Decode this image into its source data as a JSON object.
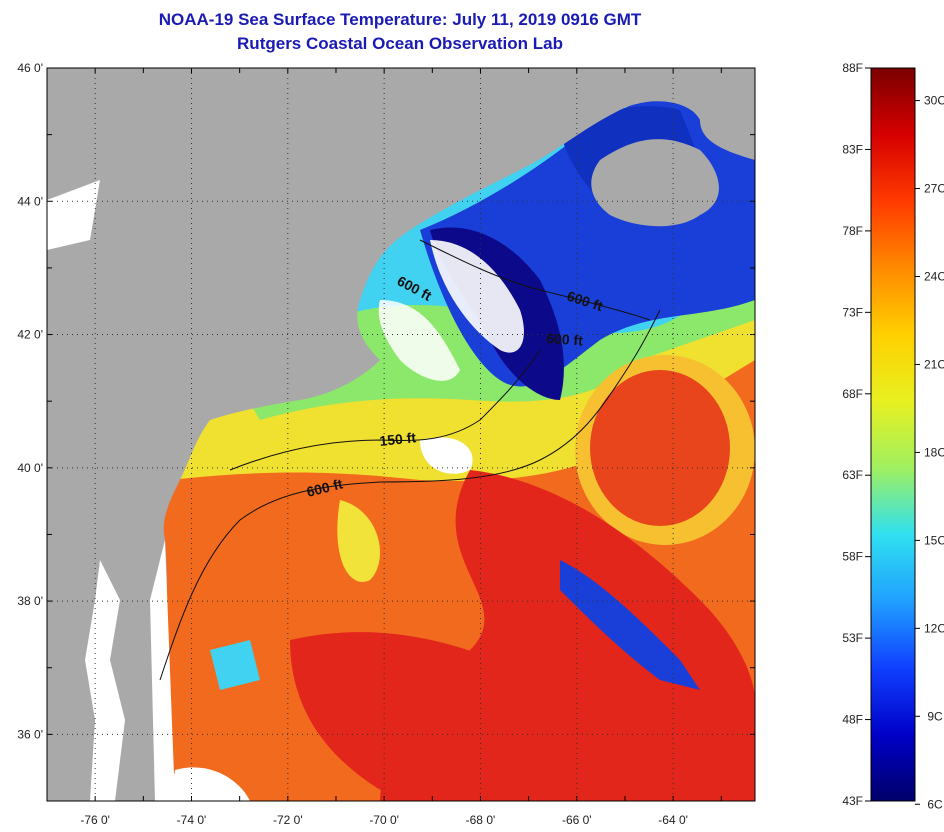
{
  "title": {
    "line1": "NOAA-19 Sea Surface Temperature:  July 11, 2019 0916 GMT",
    "line2": "Rutgers Coastal Ocean Observation Lab"
  },
  "map": {
    "lat_labels": [
      "46 0'",
      "44 0'",
      "42 0'",
      "40 0'",
      "38 0'",
      "36 0'"
    ],
    "lat_values": [
      46,
      44,
      42,
      40,
      38,
      36
    ],
    "lon_labels": [
      "-76 0'",
      "-74 0'",
      "-72 0'",
      "-70 0'",
      "-68 0'",
      "-66 0'",
      "-64 0'"
    ],
    "lon_values": [
      -76,
      -74,
      -72,
      -70,
      -68,
      -66,
      -64
    ],
    "lat_range": [
      35,
      46
    ],
    "lon_range": [
      -77,
      -62.3
    ],
    "contour_labels": [
      "600 ft",
      "600 ft",
      "600 ft",
      "150 ft",
      "600 ft"
    ],
    "colors": {
      "land": "#a9a9a9",
      "cloud": "#ffffff",
      "warm": "#f26a1e",
      "hot": "#e3261c",
      "yellow": "#f2e33a",
      "cyan": "#3fd0f0",
      "blue": "#1a3fd8",
      "navy": "#0c0a8a"
    }
  },
  "colorbar": {
    "f_labels": [
      "88F",
      "83F",
      "78F",
      "73F",
      "68F",
      "63F",
      "58F",
      "53F",
      "48F",
      "43F"
    ],
    "f_values": [
      88,
      83,
      78,
      73,
      68,
      63,
      58,
      53,
      48,
      43
    ],
    "c_labels": [
      "30C",
      "27C",
      "24C",
      "21C",
      "18C",
      "15C",
      "12C",
      "9C",
      "6C"
    ],
    "c_values": [
      30,
      27,
      24,
      21,
      18,
      15,
      12,
      9,
      6
    ],
    "range_f": [
      43,
      88
    ],
    "gradient": [
      "#7a0000",
      "#d60000",
      "#ff3a00",
      "#ff8a00",
      "#ffd000",
      "#e8f020",
      "#a0f060",
      "#30e0f0",
      "#20a0ff",
      "#1040ff",
      "#0000c8",
      "#00006a"
    ]
  }
}
